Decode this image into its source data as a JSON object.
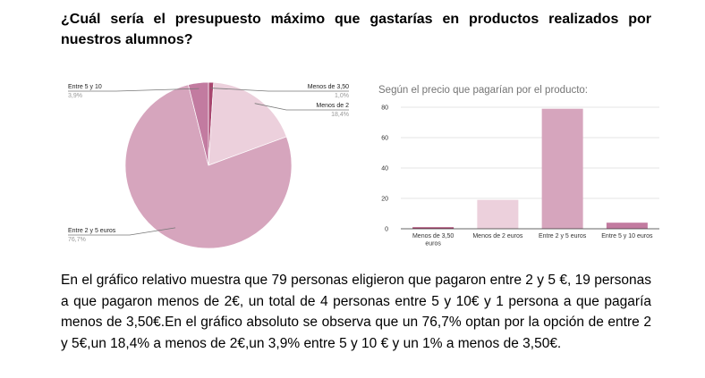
{
  "heading": {
    "line1": "¿Cuál sería el presupuesto máximo que gastarías en productos realizados por",
    "line2": "nuestros alumnos?"
  },
  "paragraph": "En el gráfico relativo muestra que 79 personas eligieron que pagaron entre 2 y 5 €, 19 personas a que pagaron menos de 2€, un total de 4 personas entre 5 y 10€ y 1 persona a que pagaría menos de 3,50€.En el gráfico absoluto se observa que un 76,7% optan por la opción de entre 2 y 5€,un 18,4% a menos de 2€,un 3,9% entre 5 y 10 € y un 1% a menos de 3,50€.",
  "chart_data": [
    {
      "type": "pie",
      "title": "",
      "slices": [
        {
          "label": "Menos de 3,50",
          "pct_label": "1,0%",
          "value": 1.0,
          "color": "#a8466f"
        },
        {
          "label": "Menos de 2",
          "pct_label": "18,4%",
          "value": 18.4,
          "color": "#ecd0dc"
        },
        {
          "label": "Entre 2 y 5 euros",
          "pct_label": "76,7%",
          "value": 76.7,
          "color": "#d6a5bd"
        },
        {
          "label": "Entre 5 y 10",
          "pct_label": "3,9%",
          "value": 3.9,
          "color": "#c27ba0"
        }
      ]
    },
    {
      "type": "bar",
      "title": "Según el precio que pagarían por el producto:",
      "categories": [
        [
          "Menos de 3,50",
          "euros"
        ],
        [
          "Menos de 2 euros"
        ],
        [
          "Entre 2 y 5 euros"
        ],
        [
          "Entre 5 y 10 euros"
        ]
      ],
      "values": [
        1,
        19,
        79,
        4
      ],
      "colors": [
        "#a8466f",
        "#ecd0dc",
        "#d6a5bd",
        "#c27ba0"
      ],
      "ylim": [
        0,
        80
      ],
      "yticks": [
        "0",
        "20",
        "40",
        "60",
        "80"
      ],
      "grid": true
    }
  ]
}
